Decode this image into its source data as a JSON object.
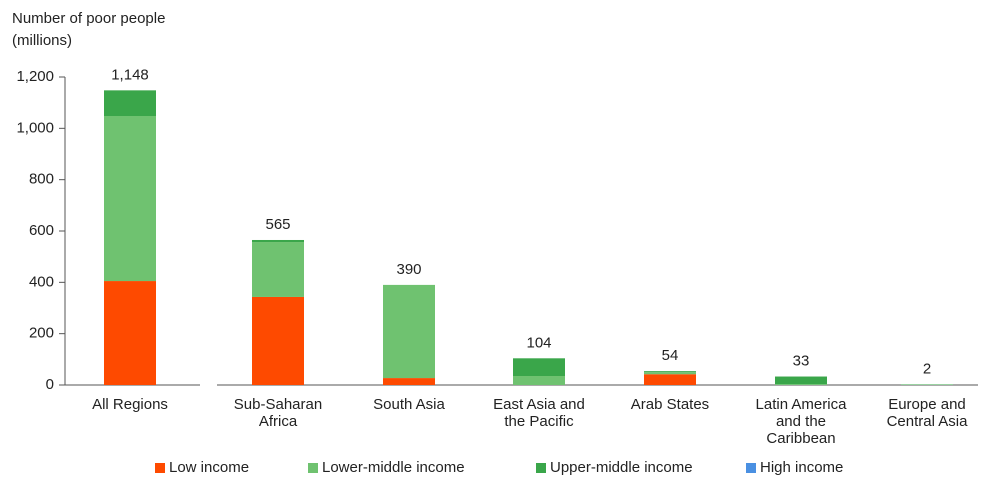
{
  "chart_data": {
    "type": "stacked_bar",
    "ylabel": "Number of poor people\n(millions)",
    "categories": [
      "All Regions",
      "Sub-Saharan\nAfrica",
      "South Asia",
      "East Asia and\nthe Pacific",
      "Arab States",
      "Latin America\nand the\nCaribbean",
      "Europe and\nCentral Asia"
    ],
    "series": [
      {
        "name": "Low income",
        "color": "#fe4a00",
        "values": [
          405,
          343,
          27,
          0,
          42,
          0,
          0
        ]
      },
      {
        "name": "Lower-middle income",
        "color": "#6fc270",
        "values": [
          643,
          214,
          363,
          35,
          8,
          3,
          0
        ]
      },
      {
        "name": "Upper-middle income",
        "color": "#3aa64a",
        "values": [
          100,
          8,
          0,
          69,
          4,
          30,
          2
        ]
      },
      {
        "name": "High income",
        "color": "#4a90e2",
        "values": [
          0,
          0,
          0,
          0,
          0,
          0,
          0
        ]
      }
    ],
    "totals": [
      1148,
      565,
      390,
      104,
      54,
      33,
      2
    ],
    "total_labels": [
      "1,148",
      "565",
      "390",
      "104",
      "54",
      "33",
      "2"
    ],
    "ylim": [
      0,
      1200
    ],
    "yticks": [
      0,
      200,
      400,
      600,
      800,
      {
        "value": 1000,
        "label": "1,000"
      },
      {
        "value": 1200,
        "label": "1,200"
      }
    ]
  }
}
